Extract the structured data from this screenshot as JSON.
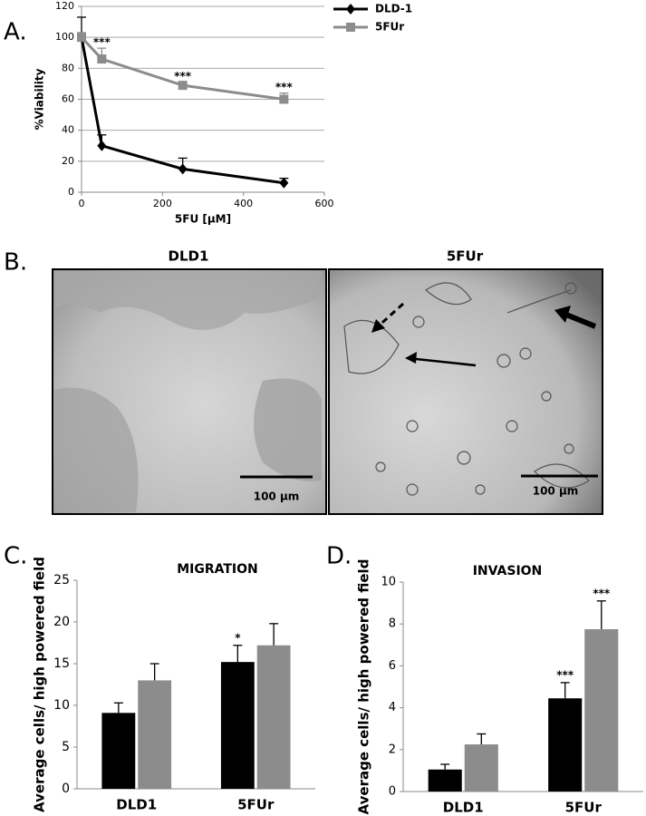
{
  "panel_labels": [
    "A.",
    "B.",
    "C.",
    "D."
  ],
  "micrographs": {
    "panels": [
      {
        "title": "DLD1",
        "scale_bar": "100 µm"
      },
      {
        "title": "5FUr",
        "scale_bar": "100 µm"
      }
    ]
  },
  "chart_data": [
    {
      "type": "line",
      "x_label": "5FU [µM]",
      "y_label": "%Viability",
      "x": [
        0,
        50,
        250,
        500
      ],
      "series": [
        {
          "name": "DLD-1",
          "color": "#000000",
          "marker": "diamond",
          "values": [
            100,
            30,
            15,
            6
          ],
          "errors": [
            13,
            7,
            7,
            3
          ]
        },
        {
          "name": "5FUr",
          "color": "#8c8c8c",
          "marker": "square",
          "values": [
            100,
            86,
            69,
            60
          ],
          "errors": [
            3,
            7,
            2,
            4
          ]
        }
      ],
      "annotations": [
        {
          "text": "***",
          "series": 1,
          "index": 1
        },
        {
          "text": "***",
          "series": 1,
          "index": 2
        },
        {
          "text": "***",
          "series": 1,
          "index": 3
        }
      ],
      "xlim": [
        0,
        600
      ],
      "xticks": [
        0,
        200,
        400,
        600
      ],
      "ylim": [
        0,
        120
      ],
      "yticks": [
        0,
        20,
        40,
        60,
        80,
        100,
        120
      ],
      "grid": true,
      "legend": "outside-right"
    },
    {
      "type": "bar",
      "title": "MIGRATION",
      "y_label": "Average cells/ high powered field",
      "categories": [
        "DLD1",
        "5FUr"
      ],
      "series": [
        {
          "color": "#000000",
          "values": [
            9.1,
            15.2
          ],
          "errors": [
            1.2,
            2.0
          ]
        },
        {
          "color": "#8c8c8c",
          "values": [
            13.0,
            17.2
          ],
          "errors": [
            2.0,
            2.6
          ]
        }
      ],
      "annotations": [
        {
          "text": "*",
          "series": 0,
          "index": 1
        }
      ],
      "ylim": [
        0,
        25
      ],
      "yticks": [
        0,
        5,
        10,
        15,
        20,
        25
      ],
      "grid": false
    },
    {
      "type": "bar",
      "title": "INVASION",
      "y_label": "Average cells/ high powered field",
      "categories": [
        "DLD1",
        "5FUr"
      ],
      "series": [
        {
          "color": "#000000",
          "values": [
            1.05,
            4.45
          ],
          "errors": [
            0.25,
            0.75
          ]
        },
        {
          "color": "#8c8c8c",
          "values": [
            2.25,
            7.75
          ],
          "errors": [
            0.5,
            1.35
          ]
        }
      ],
      "annotations": [
        {
          "text": "***",
          "series": 0,
          "index": 1
        },
        {
          "text": "***",
          "series": 1,
          "index": 1
        }
      ],
      "ylim": [
        0,
        10
      ],
      "yticks": [
        0,
        2,
        4,
        6,
        8,
        10
      ],
      "grid": false
    }
  ]
}
